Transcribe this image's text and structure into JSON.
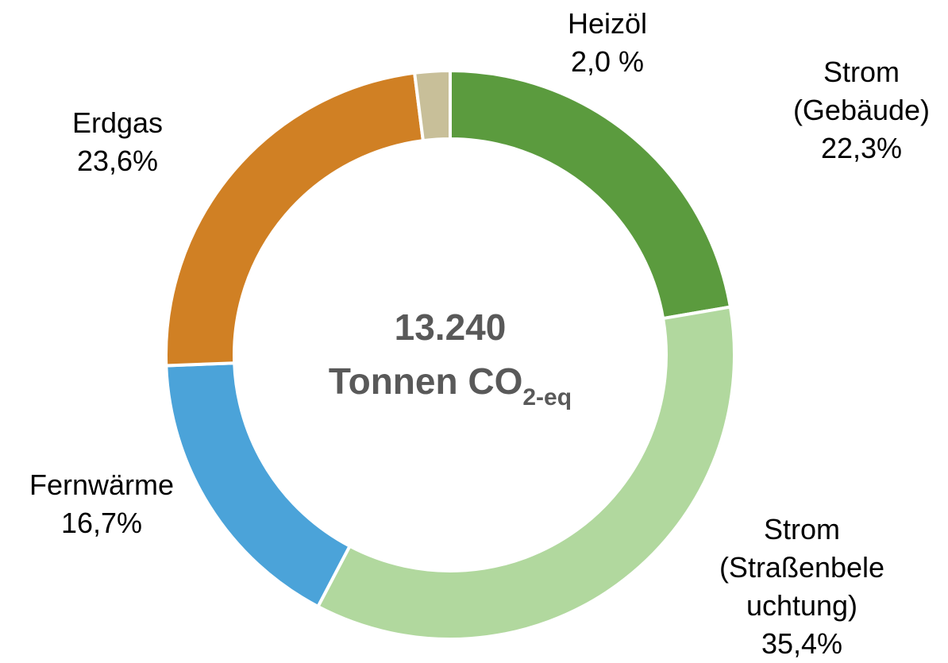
{
  "chart_data": {
    "type": "donut",
    "categories": [
      [
        "Strom",
        "(Gebäude)"
      ],
      [
        "Strom",
        "(Straßenbele",
        "uchtung)"
      ],
      [
        "Fernwärme"
      ],
      [
        "Erdgas"
      ],
      [
        "Heizöl"
      ]
    ],
    "values": [
      22.3,
      35.4,
      16.7,
      23.6,
      2.0
    ],
    "value_labels": [
      "22,3%",
      "35,4%",
      "16,7%",
      "23,6%",
      "2,0 %"
    ],
    "colors": [
      "#5b9b3e",
      "#b1d89e",
      "#4ba3d9",
      "#d08024",
      "#c8bf99"
    ],
    "center_value": "13.240",
    "center_label": {
      "text": "Tonnen CO",
      "subscript": "2-eq"
    }
  }
}
